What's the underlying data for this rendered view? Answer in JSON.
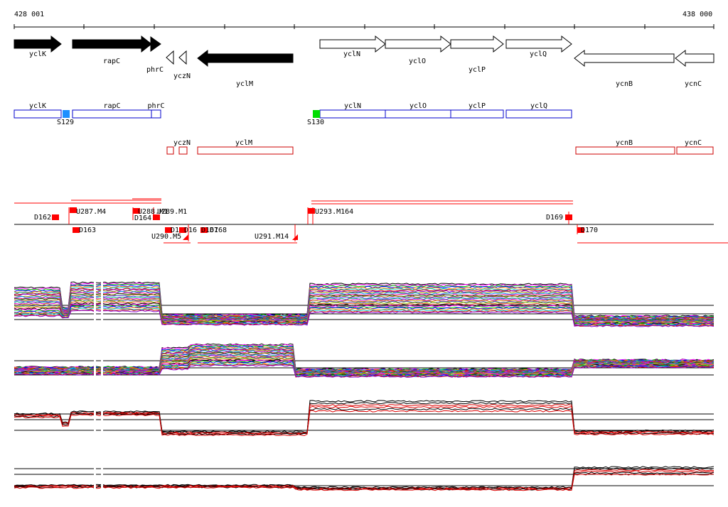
{
  "ruler": {
    "start_label": "428 001",
    "end_label": "438 000"
  },
  "colors": {
    "gene_fill": "#000000",
    "gene_outline": "#000000",
    "blue_box": "#0000cc",
    "red_box": "#cc0000",
    "marker_red": "#ff0000",
    "s129_fill": "#1e90ff",
    "s130_fill": "#00dd00",
    "track_black": "#000000",
    "track_red": "#dd0000"
  },
  "genes": [
    {
      "name": "yclK",
      "dir": "fwd",
      "filled": true
    },
    {
      "name": "rapC",
      "dir": "fwd",
      "filled": true
    },
    {
      "name": "phrC",
      "dir": "fwd",
      "filled": true
    },
    {
      "name": "yczN",
      "dir": "rev",
      "filled": false
    },
    {
      "name": "yclM",
      "dir": "rev",
      "filled": true
    },
    {
      "name": "yclN",
      "dir": "fwd",
      "filled": false
    },
    {
      "name": "yclO",
      "dir": "fwd",
      "filled": false
    },
    {
      "name": "yclP",
      "dir": "fwd",
      "filled": false
    },
    {
      "name": "yclQ",
      "dir": "fwd",
      "filled": false
    },
    {
      "name": "ycnB",
      "dir": "rev",
      "filled": false
    },
    {
      "name": "ycnC",
      "dir": "rev",
      "filled": false
    }
  ],
  "blue_boxes": [
    "yclK",
    "rapC",
    "phrC",
    "yclN",
    "yclO",
    "yclP",
    "yclQ"
  ],
  "s_markers": [
    "S129",
    "S130"
  ],
  "red_boxes": [
    "yczN",
    "yclM",
    "ycnB",
    "ycnC"
  ],
  "segments": {
    "labels": [
      "D162",
      "U287.M4",
      "D163",
      "U288.M1",
      "D164",
      "U289.M1",
      "D1",
      "D16",
      "D167",
      "D168",
      "U290.M5",
      "U291.M14",
      "U293.M164",
      "D169",
      "D170"
    ]
  }
}
